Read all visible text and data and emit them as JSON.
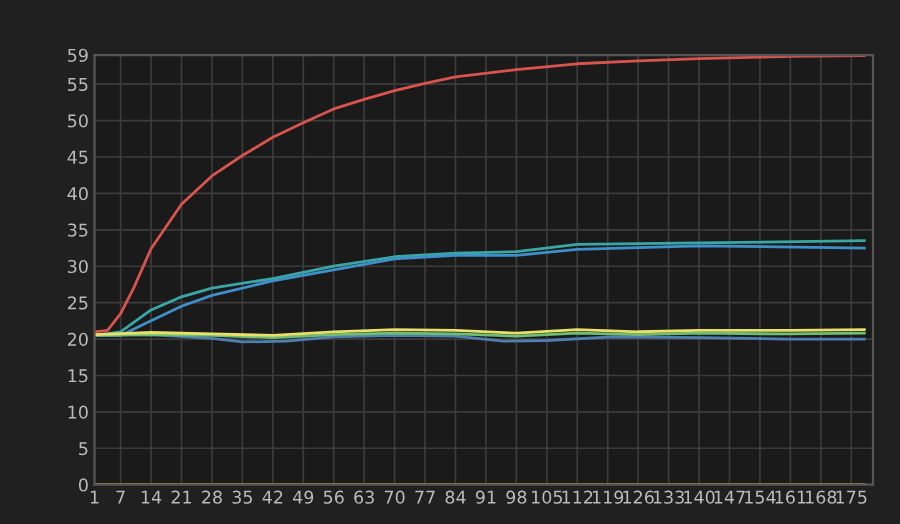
{
  "chart_data": {
    "type": "line",
    "xlim": [
      1,
      180
    ],
    "xticks": [
      1,
      7,
      14,
      21,
      28,
      35,
      42,
      49,
      56,
      63,
      70,
      77,
      84,
      91,
      98,
      105,
      112,
      119,
      126,
      133,
      140,
      147,
      154,
      161,
      168,
      175
    ],
    "ylim": [
      0,
      59
    ],
    "yticks": [
      0,
      5,
      10,
      15,
      20,
      25,
      30,
      35,
      40,
      45,
      50,
      55,
      59
    ],
    "grid": true,
    "marker": "none",
    "line_style": "solid",
    "series": [
      {
        "color": "#d9534f",
        "x": [
          1,
          4,
          7,
          10,
          14,
          21,
          28,
          35,
          42,
          49,
          56,
          63,
          70,
          77,
          84,
          98,
          112,
          126,
          140,
          154,
          161,
          178
        ],
        "values": [
          21,
          21.2,
          23.5,
          27,
          32.4,
          38.5,
          42.4,
          45.2,
          47.7,
          49.7,
          51.6,
          52.9,
          54.1,
          55.1,
          56,
          57,
          57.8,
          58.2,
          58.5,
          58.7,
          58.8,
          58.9
        ]
      },
      {
        "color": "#3aa6a6",
        "x": [
          1,
          7,
          14,
          21,
          28,
          42,
          56,
          70,
          84,
          98,
          112,
          140,
          178
        ],
        "values": [
          20.5,
          21,
          24,
          25.8,
          27,
          28.3,
          30,
          31.3,
          31.8,
          32,
          33,
          33.2,
          33.5
        ]
      },
      {
        "color": "#3f8fc9",
        "x": [
          1,
          7,
          14,
          21,
          28,
          42,
          56,
          70,
          84,
          98,
          112,
          140,
          178
        ],
        "values": [
          20.5,
          20.5,
          22.5,
          24.5,
          26,
          28,
          29.5,
          31,
          31.5,
          31.5,
          32.3,
          32.8,
          32.5
        ]
      },
      {
        "color": "#4f7fb0",
        "x": [
          1,
          14,
          28,
          35,
          45,
          56,
          70,
          84,
          95,
          105,
          120,
          140,
          160,
          178
        ],
        "values": [
          20.5,
          20.6,
          20.1,
          19.6,
          19.7,
          20.3,
          20.5,
          20.4,
          19.7,
          19.8,
          20.3,
          20.2,
          20,
          20
        ]
      },
      {
        "color": "#6fbf73",
        "x": [
          1,
          14,
          28,
          42,
          56,
          70,
          84,
          98,
          112,
          126,
          140,
          160,
          178
        ],
        "values": [
          20.5,
          20.6,
          20.5,
          20.2,
          20.6,
          20.8,
          20.7,
          20.4,
          20.8,
          20.6,
          20.8,
          20.7,
          20.8
        ]
      },
      {
        "color": "#e8e06a",
        "x": [
          1,
          14,
          28,
          42,
          56,
          70,
          84,
          98,
          112,
          126,
          140,
          161,
          178
        ],
        "values": [
          20.6,
          20.9,
          20.7,
          20.5,
          21,
          21.3,
          21.2,
          20.8,
          21.3,
          21,
          21.2,
          21.2,
          21.3
        ]
      },
      {
        "color": "#e0a050",
        "x": [
          1,
          178
        ],
        "values": [
          0,
          0
        ]
      }
    ]
  }
}
